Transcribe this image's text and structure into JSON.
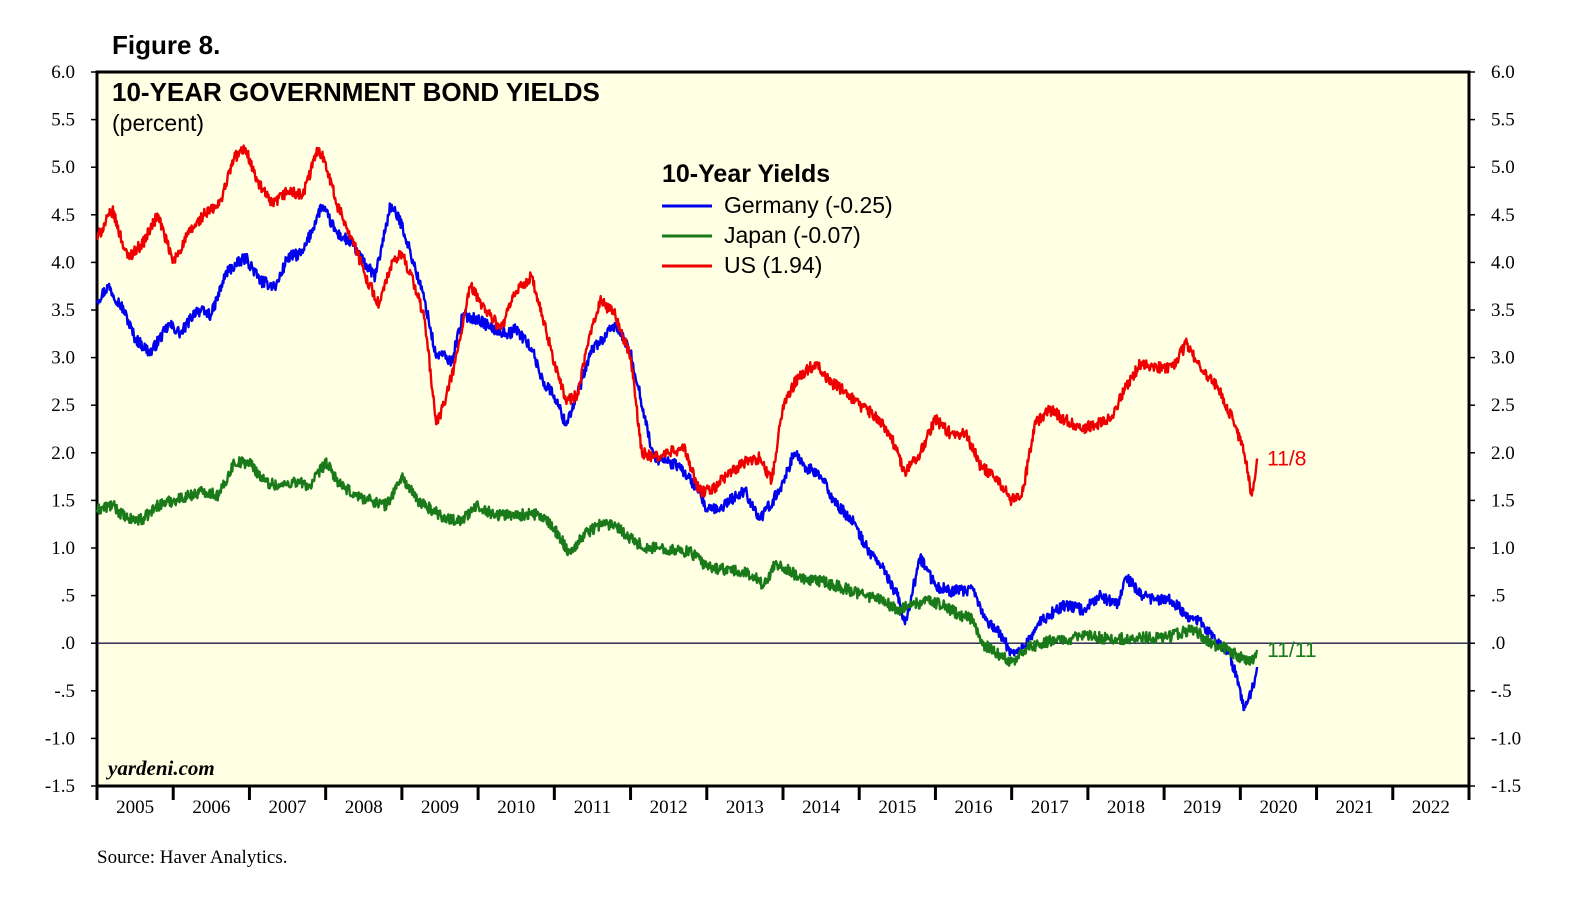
{
  "figure_label": "Figure 8.",
  "source": "Source: Haver Analytics.",
  "credit": "yardeni.com",
  "colors": {
    "plot_background": "#ffffe4",
    "germany": "#0000ee",
    "japan": "#1a7a1a",
    "us": "#ee0000"
  },
  "chart_data": {
    "type": "line",
    "title": "10-YEAR GOVERNMENT BOND YIELDS",
    "subtitle": "(percent)",
    "legend_title": "10-Year Yields",
    "legend_position": "top-center",
    "ylim": [
      -1.5,
      6.0
    ],
    "xlim": [
      2004.5,
      2022.5
    ],
    "y_ticks": [
      6.0,
      5.5,
      5.0,
      4.5,
      4.0,
      3.5,
      3.0,
      2.5,
      2.0,
      1.5,
      1.0,
      0.5,
      0.0,
      -0.5,
      -1.0,
      -1.5
    ],
    "y_tick_labels": [
      "6.0",
      "5.5",
      "5.0",
      "4.5",
      "4.0",
      "3.5",
      "3.0",
      "2.5",
      "2.0",
      "1.5",
      "1.0",
      ".5",
      ".0",
      "-.5",
      "-1.0",
      "-1.5"
    ],
    "x_tick_labels": [
      "2005",
      "2006",
      "2007",
      "2008",
      "2009",
      "2010",
      "2011",
      "2012",
      "2013",
      "2014",
      "2015",
      "2016",
      "2017",
      "2018",
      "2019",
      "2020",
      "2021",
      "2022"
    ],
    "zero_line": true,
    "series": [
      {
        "name": "Germany (-0.25)",
        "key": "germany",
        "x": [
          2004.5,
          2004.65,
          2004.85,
          2005.0,
          2005.2,
          2005.45,
          2005.6,
          2005.8,
          2006.0,
          2006.2,
          2006.45,
          2006.65,
          2006.85,
          2007.0,
          2007.2,
          2007.45,
          2007.65,
          2007.85,
          2008.0,
          2008.15,
          2008.35,
          2008.5,
          2008.65,
          2008.8,
          2008.95,
          2009.0,
          2009.15,
          2009.3,
          2009.5,
          2009.7,
          2009.9,
          2010.0,
          2010.2,
          2010.35,
          2010.5,
          2010.65,
          2010.8,
          2011.0,
          2011.15,
          2011.3,
          2011.5,
          2011.6,
          2011.8,
          2012.0,
          2012.15,
          2012.35,
          2012.5,
          2012.65,
          2012.8,
          2013.0,
          2013.2,
          2013.45,
          2013.65,
          2013.8,
          2014.0,
          2014.2,
          2014.4,
          2014.6,
          2014.8,
          2015.0,
          2015.1,
          2015.3,
          2015.5,
          2015.7,
          2015.9,
          2016.0,
          2016.15,
          2016.3,
          2016.5,
          2016.65,
          2016.85,
          2017.0,
          2017.2,
          2017.45,
          2017.65,
          2017.9,
          2018.0,
          2018.2,
          2018.4,
          2018.6,
          2018.8,
          2019.0,
          2019.2,
          2019.35,
          2019.45,
          2019.55,
          2019.65,
          2019.72
        ],
        "values": [
          3.6,
          3.75,
          3.5,
          3.2,
          3.05,
          3.35,
          3.25,
          3.5,
          3.45,
          3.9,
          4.05,
          3.8,
          3.75,
          4.05,
          4.1,
          4.6,
          4.3,
          4.2,
          4.0,
          3.85,
          4.6,
          4.4,
          4.0,
          3.6,
          3.0,
          3.05,
          2.95,
          3.45,
          3.4,
          3.3,
          3.25,
          3.3,
          3.1,
          2.75,
          2.6,
          2.3,
          2.6,
          3.1,
          3.2,
          3.35,
          3.05,
          2.7,
          1.95,
          1.9,
          1.85,
          1.65,
          1.4,
          1.4,
          1.5,
          1.6,
          1.3,
          1.6,
          2.0,
          1.85,
          1.75,
          1.45,
          1.3,
          1.0,
          0.8,
          0.5,
          0.2,
          0.9,
          0.6,
          0.55,
          0.55,
          0.55,
          0.25,
          0.15,
          -0.1,
          -0.05,
          0.2,
          0.3,
          0.4,
          0.35,
          0.5,
          0.4,
          0.7,
          0.5,
          0.45,
          0.45,
          0.3,
          0.2,
          0.0,
          -0.1,
          -0.35,
          -0.7,
          -0.5,
          -0.25
        ]
      },
      {
        "name": "Japan (-0.07)",
        "key": "japan",
        "x": [
          2004.5,
          2004.7,
          2004.9,
          2005.1,
          2005.3,
          2005.5,
          2005.7,
          2005.9,
          2006.1,
          2006.3,
          2006.5,
          2006.7,
          2006.9,
          2007.1,
          2007.3,
          2007.5,
          2007.7,
          2007.9,
          2008.1,
          2008.3,
          2008.5,
          2008.7,
          2008.9,
          2009.1,
          2009.3,
          2009.5,
          2009.7,
          2009.9,
          2010.1,
          2010.3,
          2010.5,
          2010.7,
          2010.9,
          2011.1,
          2011.3,
          2011.5,
          2011.7,
          2011.9,
          2012.1,
          2012.3,
          2012.5,
          2012.7,
          2012.9,
          2013.1,
          2013.25,
          2013.4,
          2013.6,
          2013.8,
          2014.0,
          2014.2,
          2014.4,
          2014.6,
          2014.8,
          2015.0,
          2015.2,
          2015.4,
          2015.6,
          2015.8,
          2016.0,
          2016.1,
          2016.3,
          2016.5,
          2016.7,
          2016.9,
          2017.1,
          2017.3,
          2017.5,
          2017.7,
          2017.9,
          2018.1,
          2018.3,
          2018.5,
          2018.7,
          2018.9,
          2019.1,
          2019.3,
          2019.5,
          2019.65,
          2019.72
        ],
        "values": [
          1.4,
          1.45,
          1.3,
          1.3,
          1.45,
          1.5,
          1.55,
          1.6,
          1.55,
          1.9,
          1.9,
          1.7,
          1.65,
          1.7,
          1.65,
          1.9,
          1.65,
          1.55,
          1.5,
          1.45,
          1.75,
          1.5,
          1.4,
          1.3,
          1.3,
          1.45,
          1.35,
          1.35,
          1.35,
          1.35,
          1.2,
          0.95,
          1.15,
          1.25,
          1.25,
          1.1,
          1.0,
          1.0,
          0.98,
          0.95,
          0.8,
          0.78,
          0.75,
          0.72,
          0.6,
          0.85,
          0.75,
          0.65,
          0.65,
          0.6,
          0.55,
          0.5,
          0.45,
          0.35,
          0.4,
          0.45,
          0.4,
          0.3,
          0.25,
          0.0,
          -0.1,
          -0.2,
          -0.05,
          0.0,
          0.05,
          0.05,
          0.08,
          0.05,
          0.05,
          0.05,
          0.06,
          0.05,
          0.1,
          0.15,
          0.0,
          -0.05,
          -0.15,
          -0.2,
          -0.07
        ]
      },
      {
        "name": "US (1.94)",
        "key": "us",
        "x": [
          2004.5,
          2004.7,
          2004.9,
          2005.1,
          2005.3,
          2005.5,
          2005.7,
          2005.9,
          2006.1,
          2006.3,
          2006.45,
          2006.6,
          2006.8,
          2007.0,
          2007.2,
          2007.4,
          2007.5,
          2007.65,
          2007.85,
          2008.0,
          2008.2,
          2008.35,
          2008.5,
          2008.65,
          2008.8,
          2008.95,
          2009.05,
          2009.2,
          2009.4,
          2009.6,
          2009.8,
          2010.0,
          2010.2,
          2010.35,
          2010.5,
          2010.65,
          2010.8,
          2011.0,
          2011.1,
          2011.3,
          2011.5,
          2011.65,
          2011.8,
          2012.0,
          2012.2,
          2012.4,
          2012.55,
          2012.75,
          2013.0,
          2013.2,
          2013.35,
          2013.5,
          2013.7,
          2013.95,
          2014.1,
          2014.3,
          2014.5,
          2014.7,
          2014.9,
          2015.1,
          2015.3,
          2015.5,
          2015.7,
          2015.9,
          2016.1,
          2016.3,
          2016.5,
          2016.65,
          2016.8,
          2017.0,
          2017.2,
          2017.4,
          2017.6,
          2017.8,
          2018.0,
          2018.2,
          2018.4,
          2018.6,
          2018.8,
          2019.0,
          2019.2,
          2019.4,
          2019.55,
          2019.65,
          2019.72
        ],
        "values": [
          4.25,
          4.55,
          4.05,
          4.2,
          4.5,
          4.0,
          4.3,
          4.5,
          4.6,
          5.1,
          5.2,
          4.85,
          4.6,
          4.75,
          4.7,
          5.2,
          5.05,
          4.6,
          4.25,
          3.9,
          3.55,
          3.95,
          4.1,
          3.8,
          3.4,
          2.3,
          2.5,
          2.95,
          3.75,
          3.5,
          3.3,
          3.7,
          3.85,
          3.4,
          2.95,
          2.55,
          2.6,
          3.35,
          3.6,
          3.45,
          3.0,
          2.0,
          1.95,
          2.0,
          2.05,
          1.6,
          1.6,
          1.75,
          1.9,
          1.95,
          1.7,
          2.5,
          2.8,
          2.95,
          2.75,
          2.65,
          2.5,
          2.4,
          2.2,
          1.8,
          2.0,
          2.35,
          2.2,
          2.2,
          1.85,
          1.75,
          1.5,
          1.6,
          2.3,
          2.45,
          2.35,
          2.25,
          2.3,
          2.35,
          2.7,
          2.95,
          2.9,
          2.9,
          3.15,
          2.85,
          2.7,
          2.35,
          2.0,
          1.55,
          1.94
        ]
      }
    ],
    "end_labels": [
      {
        "series": "us",
        "text": "11/8"
      },
      {
        "series": "japan",
        "text": "11/11"
      }
    ]
  }
}
